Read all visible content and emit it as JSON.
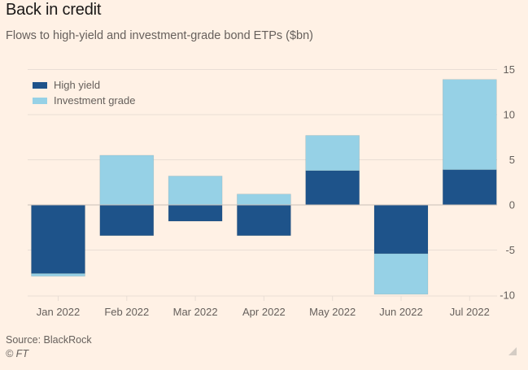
{
  "header": {
    "title": "Back in credit",
    "subtitle": "Flows to high-yield and investment-grade bond ETPs ($bn)"
  },
  "footer": {
    "source": "Source: BlackRock",
    "copyright": "© FT"
  },
  "colors": {
    "background": "#fff1e5",
    "high_yield": "#1e538a",
    "investment_grade": "#96d1e6",
    "gridline": "#e9ded5",
    "zero_line": "#c8bfb8",
    "text": "#66605c"
  },
  "chart_data": {
    "type": "bar",
    "stacked": true,
    "title": "Back in credit",
    "subtitle": "Flows to high-yield and investment-grade bond ETPs ($bn)",
    "xlabel": "",
    "ylabel": "",
    "categories": [
      "Jan 2022",
      "Feb 2022",
      "Mar 2022",
      "Apr 2022",
      "May 2022",
      "Jun 2022",
      "Jul 2022"
    ],
    "series": [
      {
        "name": "High yield",
        "color": "#1e538a",
        "values": [
          -7.6,
          -3.4,
          -1.8,
          -3.4,
          3.8,
          -5.4,
          3.9
        ]
      },
      {
        "name": "Investment grade",
        "color": "#96d1e6",
        "values": [
          -0.3,
          5.5,
          3.2,
          1.2,
          3.9,
          -4.5,
          10.0
        ]
      }
    ],
    "ylim": [
      -10,
      15
    ],
    "yticks": [
      15,
      10,
      5,
      0,
      -5,
      -10
    ],
    "ytick_labels": [
      "15",
      "10",
      "5",
      "0",
      "-5",
      "-10"
    ],
    "y_axis_side": "right",
    "grid": true,
    "legend": {
      "position": "top-left",
      "entries": [
        "High yield",
        "Investment grade"
      ]
    },
    "source": "Source: BlackRock"
  }
}
